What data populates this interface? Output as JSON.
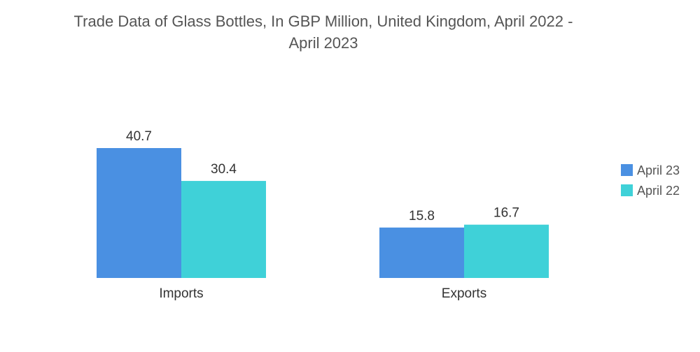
{
  "chart_data": {
    "type": "bar",
    "title_lines": [
      "Trade Data of Glass Bottles, In GBP Million, United Kingdom, April 2022 -",
      "April 2023"
    ],
    "categories": [
      "Imports",
      "Exports"
    ],
    "series": [
      {
        "name": "April 23",
        "color": "#4a90e2",
        "values": [
          40.7,
          15.8
        ]
      },
      {
        "name": "April 22",
        "color": "#3fd1d8",
        "values": [
          30.4,
          16.7
        ]
      }
    ],
    "value_labels": [
      [
        "40.7",
        "15.8"
      ],
      [
        "30.4",
        "16.7"
      ]
    ],
    "ylim": [
      0,
      40.7
    ],
    "grid": false,
    "legend_position": "right"
  }
}
